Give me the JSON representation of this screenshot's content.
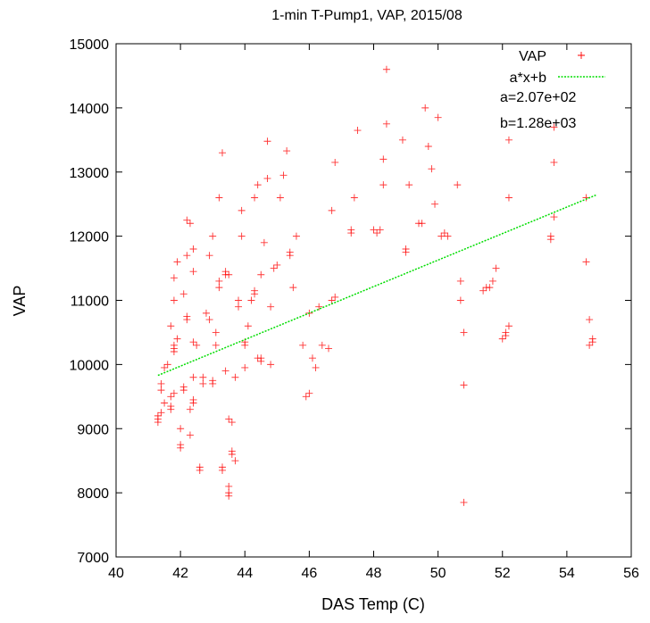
{
  "chart_data": {
    "type": "scatter",
    "title": "1-min T-Pump1, VAP, 2015/08",
    "xlabel": "DAS Temp (C)",
    "ylabel": "VAP",
    "xlim": [
      40,
      56
    ],
    "ylim": [
      7000,
      15000
    ],
    "x_ticks": [
      "40",
      "42",
      "44",
      "46",
      "48",
      "50",
      "52",
      "54",
      "56"
    ],
    "y_ticks": [
      "7000",
      "8000",
      "9000",
      "10000",
      "11000",
      "12000",
      "13000",
      "14000",
      "15000"
    ],
    "grid": false,
    "legend_position": "top-right",
    "series": [
      {
        "name": "VAP",
        "marker": "plus",
        "color": "#ff0000",
        "points": [
          [
            41.3,
            9100
          ],
          [
            41.3,
            9150
          ],
          [
            41.3,
            9200
          ],
          [
            41.4,
            9250
          ],
          [
            41.4,
            9600
          ],
          [
            41.4,
            9700
          ],
          [
            41.5,
            9400
          ],
          [
            41.5,
            9950
          ],
          [
            41.6,
            10000
          ],
          [
            41.7,
            9300
          ],
          [
            41.7,
            9350
          ],
          [
            41.7,
            9500
          ],
          [
            41.8,
            9550
          ],
          [
            41.8,
            10200
          ],
          [
            41.8,
            10250
          ],
          [
            41.8,
            10300
          ],
          [
            41.9,
            10400
          ],
          [
            41.7,
            10600
          ],
          [
            41.8,
            11000
          ],
          [
            41.8,
            11350
          ],
          [
            41.9,
            11600
          ],
          [
            42.0,
            8700
          ],
          [
            42.0,
            8750
          ],
          [
            42.0,
            9000
          ],
          [
            42.1,
            9600
          ],
          [
            42.1,
            9650
          ],
          [
            42.2,
            10700
          ],
          [
            42.2,
            10750
          ],
          [
            42.1,
            11100
          ],
          [
            42.2,
            11700
          ],
          [
            42.3,
            12200
          ],
          [
            42.2,
            12250
          ],
          [
            42.3,
            8900
          ],
          [
            42.3,
            9300
          ],
          [
            42.4,
            9400
          ],
          [
            42.4,
            9450
          ],
          [
            42.4,
            9800
          ],
          [
            42.5,
            10300
          ],
          [
            42.4,
            10350
          ],
          [
            42.4,
            11450
          ],
          [
            42.4,
            11800
          ],
          [
            42.6,
            8350
          ],
          [
            42.6,
            8400
          ],
          [
            42.7,
            9700
          ],
          [
            42.7,
            9800
          ],
          [
            42.8,
            10800
          ],
          [
            42.9,
            10700
          ],
          [
            42.9,
            11700
          ],
          [
            43.0,
            12000
          ],
          [
            43.0,
            9700
          ],
          [
            43.0,
            9750
          ],
          [
            43.1,
            10300
          ],
          [
            43.1,
            10500
          ],
          [
            43.2,
            11200
          ],
          [
            43.2,
            11300
          ],
          [
            43.2,
            12600
          ],
          [
            43.3,
            13300
          ],
          [
            43.3,
            8350
          ],
          [
            43.3,
            8400
          ],
          [
            43.4,
            9900
          ],
          [
            43.4,
            11400
          ],
          [
            43.4,
            11450
          ],
          [
            43.5,
            11400
          ],
          [
            43.5,
            7950
          ],
          [
            43.5,
            8000
          ],
          [
            43.5,
            8100
          ],
          [
            43.6,
            8600
          ],
          [
            43.6,
            8650
          ],
          [
            43.7,
            8500
          ],
          [
            43.6,
            9100
          ],
          [
            43.5,
            9150
          ],
          [
            43.7,
            9800
          ],
          [
            43.8,
            10900
          ],
          [
            43.8,
            11000
          ],
          [
            43.9,
            12000
          ],
          [
            43.9,
            12400
          ],
          [
            44.0,
            10300
          ],
          [
            44.0,
            10350
          ],
          [
            44.0,
            9950
          ],
          [
            44.1,
            10600
          ],
          [
            44.2,
            11000
          ],
          [
            44.3,
            11100
          ],
          [
            44.3,
            11150
          ],
          [
            44.3,
            12600
          ],
          [
            44.4,
            12800
          ],
          [
            44.4,
            10100
          ],
          [
            44.5,
            10050
          ],
          [
            44.5,
            10100
          ],
          [
            44.5,
            11400
          ],
          [
            44.6,
            11900
          ],
          [
            44.7,
            12900
          ],
          [
            44.7,
            13480
          ],
          [
            44.8,
            10000
          ],
          [
            44.8,
            10900
          ],
          [
            44.9,
            11500
          ],
          [
            45.0,
            11550
          ],
          [
            45.1,
            12600
          ],
          [
            45.2,
            12950
          ],
          [
            45.3,
            13330
          ],
          [
            45.4,
            11700
          ],
          [
            45.4,
            11750
          ],
          [
            45.5,
            11200
          ],
          [
            45.6,
            12000
          ],
          [
            45.8,
            10300
          ],
          [
            45.9,
            9500
          ],
          [
            46.0,
            9550
          ],
          [
            46.0,
            10800
          ],
          [
            46.1,
            10100
          ],
          [
            46.2,
            9950
          ],
          [
            46.3,
            10900
          ],
          [
            46.4,
            10300
          ],
          [
            46.6,
            10250
          ],
          [
            46.7,
            11000
          ],
          [
            46.8,
            11050
          ],
          [
            46.7,
            12400
          ],
          [
            46.8,
            13150
          ],
          [
            47.3,
            12050
          ],
          [
            47.3,
            12100
          ],
          [
            47.4,
            12600
          ],
          [
            47.5,
            13650
          ],
          [
            48.0,
            12100
          ],
          [
            48.1,
            12050
          ],
          [
            48.2,
            12100
          ],
          [
            48.3,
            12800
          ],
          [
            48.3,
            13200
          ],
          [
            48.4,
            13750
          ],
          [
            48.4,
            14600
          ],
          [
            48.9,
            13500
          ],
          [
            49.0,
            11750
          ],
          [
            49.0,
            11800
          ],
          [
            49.1,
            12800
          ],
          [
            49.4,
            12200
          ],
          [
            49.5,
            12200
          ],
          [
            49.6,
            14000
          ],
          [
            49.7,
            13400
          ],
          [
            49.8,
            13050
          ],
          [
            49.9,
            12500
          ],
          [
            50.0,
            13850
          ],
          [
            50.1,
            12000
          ],
          [
            50.2,
            12050
          ],
          [
            50.3,
            12000
          ],
          [
            50.6,
            12800
          ],
          [
            50.7,
            11300
          ],
          [
            50.7,
            11000
          ],
          [
            50.8,
            10500
          ],
          [
            50.8,
            9680
          ],
          [
            50.8,
            7850
          ],
          [
            51.4,
            11150
          ],
          [
            51.5,
            11200
          ],
          [
            51.6,
            11200
          ],
          [
            51.7,
            11300
          ],
          [
            51.8,
            11500
          ],
          [
            52.0,
            10400
          ],
          [
            52.1,
            10500
          ],
          [
            52.1,
            10450
          ],
          [
            52.2,
            10600
          ],
          [
            52.2,
            12600
          ],
          [
            52.2,
            13500
          ],
          [
            53.5,
            11950
          ],
          [
            53.5,
            12000
          ],
          [
            53.6,
            12300
          ],
          [
            53.6,
            13150
          ],
          [
            53.6,
            13700
          ],
          [
            54.6,
            12600
          ],
          [
            54.6,
            11600
          ],
          [
            54.7,
            10700
          ],
          [
            54.7,
            10300
          ],
          [
            54.8,
            10350
          ],
          [
            54.8,
            10400
          ]
        ]
      },
      {
        "name": "a*x+b",
        "kind": "fit-line",
        "color": "#00dd00",
        "points": [
          [
            41.3,
            9830
          ],
          [
            54.9,
            12640
          ]
        ]
      }
    ],
    "annotations": [
      "a=2.07e+02",
      "b=1.28e+03"
    ]
  }
}
